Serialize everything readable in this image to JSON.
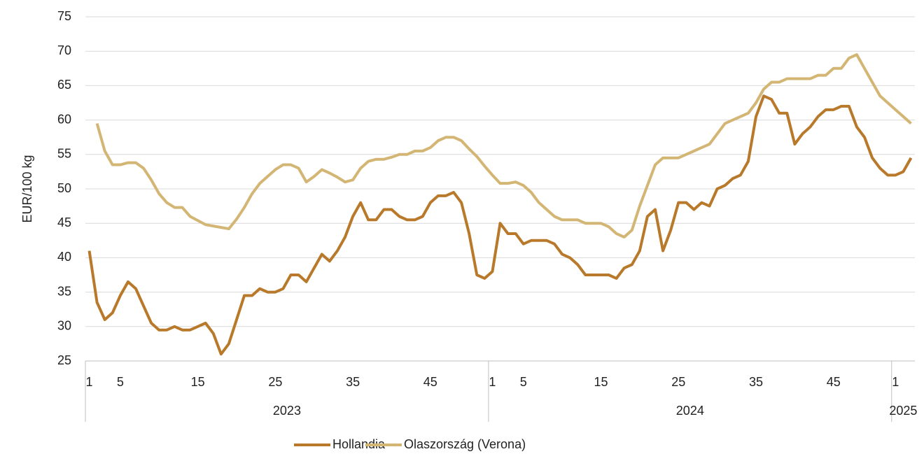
{
  "chart_data": {
    "type": "line",
    "y_label": "EUR/100 kg",
    "categories": [
      "1",
      null,
      null,
      null,
      "5",
      null,
      null,
      null,
      null,
      null,
      null,
      null,
      null,
      null,
      "15",
      null,
      null,
      null,
      null,
      null,
      null,
      null,
      null,
      null,
      "25",
      null,
      null,
      null,
      null,
      null,
      null,
      null,
      null,
      null,
      "35",
      null,
      null,
      null,
      null,
      null,
      null,
      null,
      null,
      null,
      "45",
      null,
      null,
      null,
      null,
      null,
      null,
      null,
      "1",
      null,
      null,
      null,
      "5",
      null,
      null,
      null,
      null,
      null,
      null,
      null,
      null,
      null,
      "15",
      null,
      null,
      null,
      null,
      null,
      null,
      null,
      null,
      null,
      "25",
      null,
      null,
      null,
      null,
      null,
      null,
      null,
      null,
      null,
      "35",
      null,
      null,
      null,
      null,
      null,
      null,
      null,
      null,
      null,
      "45",
      null,
      null,
      null,
      null,
      null,
      null,
      null,
      "1",
      null,
      null
    ],
    "groups": [
      {
        "label": "2023",
        "count": 52
      },
      {
        "label": "2024",
        "count": 52
      },
      {
        "label": "2025",
        "count": 3
      }
    ],
    "series": [
      {
        "name": "Hollandia",
        "color": "#b8792a",
        "values": [
          41,
          33.5,
          31,
          32,
          34.5,
          36.5,
          35.5,
          33,
          30.5,
          29.5,
          29.5,
          30,
          29.5,
          29.5,
          30,
          30.5,
          29,
          26,
          27.5,
          31,
          34.5,
          34.5,
          35.5,
          35,
          35,
          35.5,
          37.5,
          37.5,
          36.5,
          38.5,
          40.5,
          39.5,
          41,
          43,
          46,
          48,
          45.5,
          45.5,
          47,
          47,
          46,
          45.5,
          45.5,
          46,
          48,
          49,
          49,
          49.5,
          48,
          43.5,
          37.5,
          37,
          38,
          45,
          43.5,
          43.5,
          42,
          42.5,
          42.5,
          42.5,
          42,
          40.5,
          40,
          39,
          37.5,
          37.5,
          37.5,
          37.5,
          37,
          38.5,
          39,
          41,
          46,
          47,
          41,
          44,
          48,
          48,
          47,
          48,
          47.5,
          50,
          50.5,
          51.5,
          52,
          54,
          60.5,
          63.5,
          63,
          61,
          61,
          56.5,
          58,
          59,
          60.5,
          61.5,
          61.5,
          62,
          62,
          59,
          57.5,
          54.5,
          53,
          52,
          52,
          52.5,
          54.5
        ]
      },
      {
        "name": "Olaszország (Verona)",
        "color": "#d3b574",
        "values": [
          null,
          59.5,
          55.5,
          53.5,
          53.5,
          53.8,
          53.8,
          53,
          51.3,
          49.3,
          48,
          47.3,
          47.3,
          46,
          45.4,
          44.8,
          44.6,
          44.4,
          44.2,
          45.6,
          47.3,
          49.3,
          50.8,
          51.8,
          52.8,
          53.5,
          53.5,
          53,
          51,
          51.8,
          52.8,
          52.3,
          51.7,
          51,
          51.3,
          53,
          54,
          54.3,
          54.3,
          54.6,
          55,
          55,
          55.5,
          55.5,
          56,
          57,
          57.5,
          57.5,
          57,
          55.8,
          54.7,
          53.3,
          52,
          50.8,
          50.8,
          51,
          50.5,
          49.5,
          48,
          47,
          46,
          45.5,
          45.5,
          45.5,
          45,
          45,
          45,
          44.5,
          43.5,
          43,
          44,
          47.5,
          50.5,
          53.5,
          54.5,
          54.5,
          54.5,
          55,
          55.5,
          56,
          56.5,
          58,
          59.5,
          60,
          60.5,
          61,
          62.5,
          64.5,
          65.5,
          65.5,
          66,
          66,
          66,
          66,
          66.5,
          66.5,
          67.5,
          67.5,
          69,
          69.5,
          67.5,
          65.5,
          63.5,
          62.5,
          61.5,
          60.5,
          59.5
        ]
      }
    ],
    "ylim": [
      25,
      75
    ],
    "yticks": [
      25,
      30,
      35,
      40,
      45,
      50,
      55,
      60,
      65,
      70,
      75
    ],
    "grid": true,
    "legend": "bottom"
  }
}
